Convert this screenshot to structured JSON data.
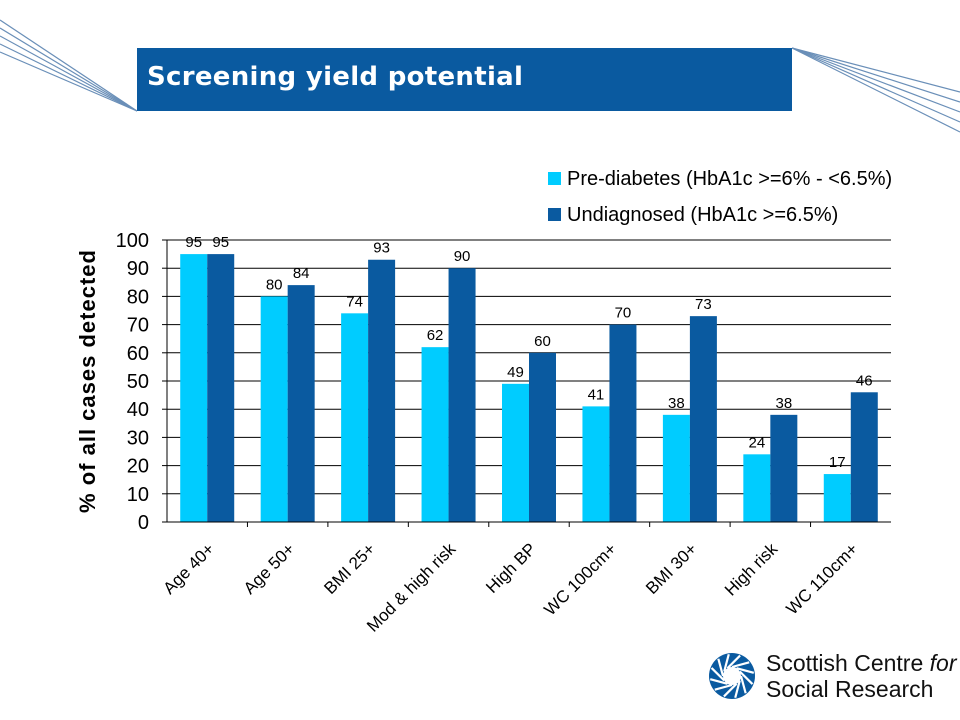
{
  "slide": {
    "title": "Screening yield potential",
    "accent_color": "#0a5aa0"
  },
  "logo": {
    "line1": "Scottish Centre ",
    "line1_italic": "for",
    "line2": "Social Research",
    "icon": "aperture-logo-icon"
  },
  "chart_data": {
    "type": "bar",
    "title": "",
    "ylabel": "% of all cases detected",
    "xlabel": "",
    "ylim": [
      0,
      100
    ],
    "yticks": [
      0,
      10,
      20,
      30,
      40,
      50,
      60,
      70,
      80,
      90,
      100
    ],
    "grid": true,
    "legend_position": "top-right",
    "categories": [
      "Age 40+",
      "Age 50+",
      "BMI 25+",
      "Mod & high risk",
      "High BP",
      "WC 100cm+",
      "BMI 30+",
      "High risk",
      "WC 110cm+"
    ],
    "series": [
      {
        "name": "Pre-diabetes (HbA1c >=6% - <6.5%)",
        "color": "#00ccff",
        "values": [
          95,
          80,
          74,
          62,
          49,
          41,
          38,
          24,
          17
        ]
      },
      {
        "name": "Undiagnosed (HbA1c >=6.5%)",
        "color": "#0a5aa0",
        "values": [
          95,
          84,
          93,
          90,
          60,
          70,
          73,
          38,
          46
        ]
      }
    ]
  }
}
